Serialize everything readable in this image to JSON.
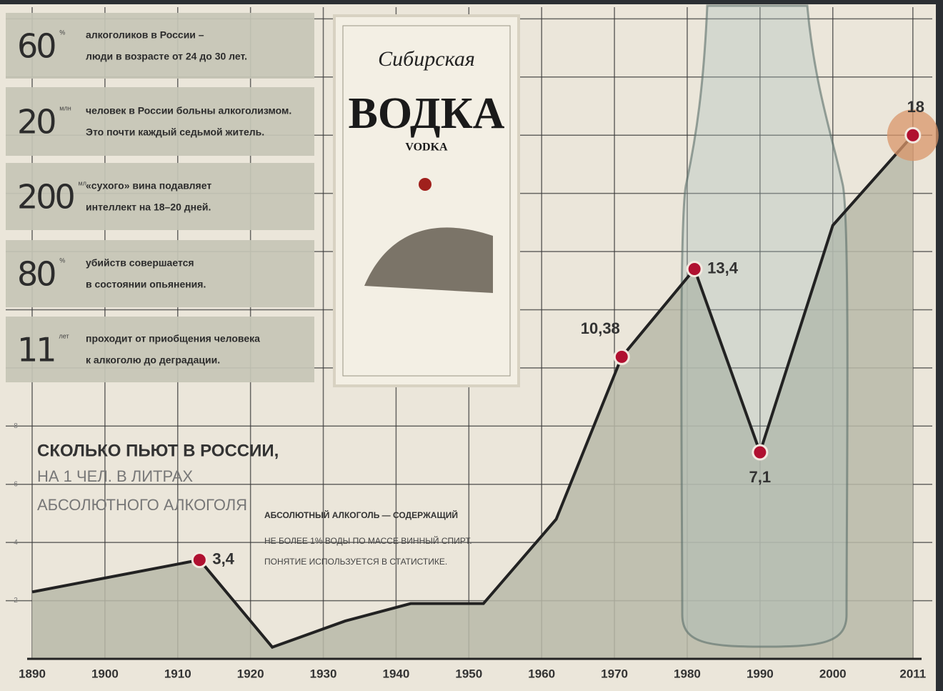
{
  "chart_data": {
    "type": "area-line",
    "title": "СКОЛЬКО ПЬЮТ В РОССИИ,",
    "subtitle": [
      "НА 1 ЧЕЛ. В ЛИТРАХ",
      "АБСОЛЮТНОГО АЛКОГОЛЯ"
    ],
    "annotation": [
      "АБСОЛЮТНЫЙ АЛКОГОЛЬ — СОДЕРЖАЩИЙ",
      "НЕ БОЛЕЕ 1% ВОДЫ ПО МАССЕ ВИННЫЙ СПИРТ.",
      "ПОНЯТИЕ ИСПОЛЬЗУЕТСЯ В СТАТИСТИКЕ."
    ],
    "x": [
      1890,
      1913,
      1923,
      1933,
      1942,
      1952,
      1962,
      1971,
      1981,
      1990,
      2000,
      2011
    ],
    "series": [
      {
        "color": "#222222",
        "fill": "#b8b9a8",
        "marker_color": "#b01030",
        "values": [
          2.3,
          3.4,
          0.4,
          1.3,
          1.9,
          1.9,
          4.8,
          10.38,
          13.4,
          7.1,
          14.9,
          18
        ],
        "value_labels": [
          null,
          "3,4",
          null,
          null,
          null,
          null,
          null,
          "10,38",
          "13,4",
          "7,1",
          null,
          "18"
        ]
      }
    ],
    "xlim": [
      1888.5,
      2012
    ],
    "xticks": [
      1890,
      1900,
      1910,
      1920,
      1930,
      1940,
      1950,
      1960,
      1970,
      1980,
      1990,
      2000,
      2011
    ],
    "ylim": [
      0,
      22.5
    ],
    "yticks": [
      2,
      4,
      6,
      8
    ],
    "ygrid": [
      2,
      4,
      6,
      8,
      10,
      12,
      14,
      16,
      18,
      20,
      22
    ],
    "grid": true
  },
  "infographic": {
    "facts": [
      {
        "number": "60",
        "unit": "%",
        "lines": [
          "алкоголиков в России –",
          "люди в возрасте от 24 до 30 лет."
        ]
      },
      {
        "number": "20",
        "unit": "млн",
        "lines": [
          "человек в России больны алкоголизмом.",
          "Это почти каждый седьмой житель."
        ]
      },
      {
        "number": "200",
        "unit": "мл",
        "lines": [
          "«сухого» вина подавляет",
          "интеллект на 18–20 дней."
        ]
      },
      {
        "number": "80",
        "unit": "%",
        "lines": [
          "убийств совершается",
          "в состоянии опьянения."
        ]
      },
      {
        "number": "11",
        "unit": "лет",
        "lines": [
          "проходит от приобщения человека",
          "к алкоголю до деградации."
        ]
      }
    ],
    "label": {
      "brand": "Сибирская",
      "name": "ВОДКА",
      "latin": "VODKA"
    }
  }
}
